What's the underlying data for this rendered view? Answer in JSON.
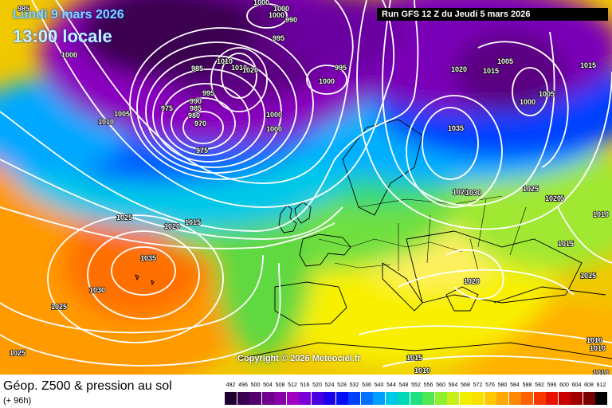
{
  "header": {
    "date": "Lundi 9 mars 2026",
    "time": "13:00 locale",
    "run": "Run GFS 12 Z du Jeudi 5 mars 2026"
  },
  "copyright": "Copyright © 2026 Meteociel.fr",
  "footer": {
    "title": "Géop. Z500 & pression au sol",
    "subtitle": "(+ 96h)"
  },
  "legend": {
    "values": [
      "492",
      "496",
      "500",
      "504",
      "508",
      "512",
      "516",
      "520",
      "524",
      "528",
      "532",
      "536",
      "540",
      "544",
      "548",
      "552",
      "556",
      "560",
      "564",
      "568",
      "572",
      "576",
      "580",
      "584",
      "588",
      "592",
      "596",
      "600",
      "604",
      "608",
      "612"
    ],
    "colors": [
      "#1e0030",
      "#3a0050",
      "#55006e",
      "#6e008c",
      "#8800a8",
      "#a000c0",
      "#7a00d8",
      "#4800e0",
      "#1c00e8",
      "#0010f0",
      "#0040ff",
      "#0070ff",
      "#00a0ff",
      "#00c8e8",
      "#00d8b8",
      "#20e080",
      "#50e850",
      "#90f030",
      "#c8f018",
      "#f0f000",
      "#f8e000",
      "#ffc800",
      "#ffa800",
      "#ff8800",
      "#ff6000",
      "#f83800",
      "#e81000",
      "#c80000",
      "#a00000",
      "#780000",
      "#000000"
    ]
  },
  "pressure_labels": [
    {
      "text": "985"
    },
    {
      "text": "1000"
    },
    {
      "text": "1000"
    },
    {
      "text": "1000"
    },
    {
      "text": "990"
    },
    {
      "text": "995"
    },
    {
      "text": "1000"
    },
    {
      "text": "985"
    },
    {
      "text": "1010"
    },
    {
      "text": "1010"
    },
    {
      "text": "1020"
    },
    {
      "text": "995"
    },
    {
      "text": "975"
    },
    {
      "text": "990"
    },
    {
      "text": "985"
    },
    {
      "text": "980"
    },
    {
      "text": "970"
    },
    {
      "text": "975"
    },
    {
      "text": "1005"
    },
    {
      "text": "1010"
    },
    {
      "text": "1000"
    },
    {
      "text": "1000"
    },
    {
      "text": "995"
    },
    {
      "text": "1000"
    },
    {
      "text": "1025"
    },
    {
      "text": "1020"
    },
    {
      "text": "1015"
    },
    {
      "text": "1010"
    },
    {
      "text": "1020"
    },
    {
      "text": "1015"
    },
    {
      "text": "1000"
    },
    {
      "text": "1005"
    },
    {
      "text": "1035"
    },
    {
      "text": "1030"
    },
    {
      "text": "1025"
    },
    {
      "text": "1025"
    },
    {
      "text": "1010"
    },
    {
      "text": "1015"
    },
    {
      "text": "1015"
    },
    {
      "text": "1020"
    },
    {
      "text": "1025"
    },
    {
      "text": "1020"
    },
    {
      "text": "1015"
    },
    {
      "text": "1035"
    },
    {
      "text": "1030"
    },
    {
      "text": "1025"
    },
    {
      "text": "1020"
    },
    {
      "text": "1015"
    },
    {
      "text": "1010"
    },
    {
      "text": "1010"
    },
    {
      "text": "1010"
    },
    {
      "text": "1005"
    }
  ]
}
